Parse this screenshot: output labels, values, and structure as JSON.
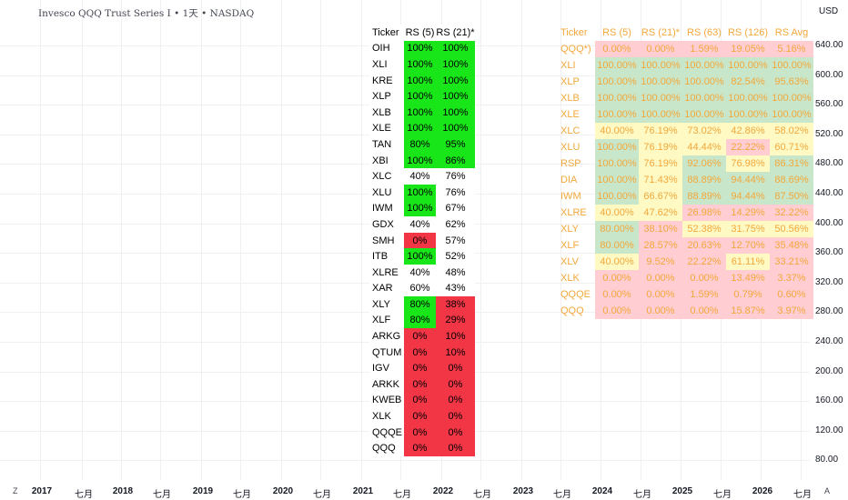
{
  "header": {
    "title": "Invesco QQQ Trust Series I • 1天 • NASDAQ",
    "currency": "USD"
  },
  "price_axis": [
    "640.00",
    "600.00",
    "560.00",
    "520.00",
    "480.00",
    "440.00",
    "400.00",
    "360.00",
    "320.00",
    "280.00",
    "240.00",
    "200.00",
    "160.00",
    "120.00",
    "80.00"
  ],
  "time_axis": [
    {
      "label": "2017",
      "year": true
    },
    {
      "label": "七月",
      "year": false
    },
    {
      "label": "2018",
      "year": true
    },
    {
      "label": "七月",
      "year": false
    },
    {
      "label": "2019",
      "year": true
    },
    {
      "label": "七月",
      "year": false
    },
    {
      "label": "2020",
      "year": true
    },
    {
      "label": "七月",
      "year": false
    },
    {
      "label": "2021",
      "year": true
    },
    {
      "label": "七月",
      "year": false
    },
    {
      "label": "2022",
      "year": true
    },
    {
      "label": "七月",
      "year": false
    },
    {
      "label": "2023",
      "year": true
    },
    {
      "label": "七月",
      "year": false
    },
    {
      "label": "2024",
      "year": true
    },
    {
      "label": "七月",
      "year": false
    },
    {
      "label": "2025",
      "year": true
    },
    {
      "label": "七月",
      "year": false
    },
    {
      "label": "2026",
      "year": true
    },
    {
      "label": "七月",
      "year": false
    }
  ],
  "corner": {
    "left": "Z",
    "right": "A"
  },
  "colors": {
    "green": "#19e619",
    "red": "#f23645",
    "soft_green": "#c8e6c9",
    "soft_yellow": "#fff9c4",
    "soft_red": "#ffcdd2",
    "orange_text": "#f3a83b"
  },
  "rs_table": {
    "headers": [
      "Ticker",
      "RS (5)",
      "RS (21)*"
    ],
    "rows": [
      {
        "t": "OIH",
        "a": "100%",
        "ac": "g",
        "b": "100%",
        "bc": "g"
      },
      {
        "t": "XLI",
        "a": "100%",
        "ac": "g",
        "b": "100%",
        "bc": "g"
      },
      {
        "t": "KRE",
        "a": "100%",
        "ac": "g",
        "b": "100%",
        "bc": "g"
      },
      {
        "t": "XLP",
        "a": "100%",
        "ac": "g",
        "b": "100%",
        "bc": "g"
      },
      {
        "t": "XLB",
        "a": "100%",
        "ac": "g",
        "b": "100%",
        "bc": "g"
      },
      {
        "t": "XLE",
        "a": "100%",
        "ac": "g",
        "b": "100%",
        "bc": "g"
      },
      {
        "t": "TAN",
        "a": "80%",
        "ac": "g",
        "b": "95%",
        "bc": "g"
      },
      {
        "t": "XBI",
        "a": "100%",
        "ac": "g",
        "b": "86%",
        "bc": "g"
      },
      {
        "t": "XLC",
        "a": "40%",
        "ac": "w",
        "b": "76%",
        "bc": "w"
      },
      {
        "t": "XLU",
        "a": "100%",
        "ac": "g",
        "b": "76%",
        "bc": "w"
      },
      {
        "t": "IWM",
        "a": "100%",
        "ac": "g",
        "b": "67%",
        "bc": "w"
      },
      {
        "t": "GDX",
        "a": "40%",
        "ac": "w",
        "b": "62%",
        "bc": "w"
      },
      {
        "t": "SMH",
        "a": "0%",
        "ac": "r",
        "b": "57%",
        "bc": "w"
      },
      {
        "t": "ITB",
        "a": "100%",
        "ac": "g",
        "b": "52%",
        "bc": "w"
      },
      {
        "t": "XLRE",
        "a": "40%",
        "ac": "w",
        "b": "48%",
        "bc": "w"
      },
      {
        "t": "XAR",
        "a": "60%",
        "ac": "w",
        "b": "43%",
        "bc": "w"
      },
      {
        "t": "XLY",
        "a": "80%",
        "ac": "g",
        "b": "38%",
        "bc": "r"
      },
      {
        "t": "XLF",
        "a": "80%",
        "ac": "g",
        "b": "29%",
        "bc": "r"
      },
      {
        "t": "ARKG",
        "a": "0%",
        "ac": "r",
        "b": "10%",
        "bc": "r"
      },
      {
        "t": "QTUM",
        "a": "0%",
        "ac": "r",
        "b": "10%",
        "bc": "r"
      },
      {
        "t": "IGV",
        "a": "0%",
        "ac": "r",
        "b": "0%",
        "bc": "r"
      },
      {
        "t": "ARKK",
        "a": "0%",
        "ac": "r",
        "b": "0%",
        "bc": "r"
      },
      {
        "t": "KWEB",
        "a": "0%",
        "ac": "r",
        "b": "0%",
        "bc": "r"
      },
      {
        "t": "XLK",
        "a": "0%",
        "ac": "r",
        "b": "0%",
        "bc": "r"
      },
      {
        "t": "QQQE",
        "a": "0%",
        "ac": "r",
        "b": "0%",
        "bc": "r"
      },
      {
        "t": "QQQ",
        "a": "0%",
        "ac": "r",
        "b": "0%",
        "bc": "r"
      }
    ]
  },
  "rs_avg_table": {
    "headers": [
      "Ticker",
      "RS (5)",
      "RS (21)*",
      "RS (63)",
      "RS (126)",
      "RS Avg"
    ],
    "rows": [
      {
        "t": "QQQ*)",
        "c": "r",
        "v": [
          "0.00%",
          "0.00%",
          "1.59%",
          "19.05%",
          "5.16%"
        ]
      },
      {
        "t": "XLI",
        "c": "g",
        "v": [
          "100.00%",
          "100.00%",
          "100.00%",
          "100.00%",
          "100.00%"
        ]
      },
      {
        "t": "XLP",
        "c": "g",
        "v": [
          "100.00%",
          "100.00%",
          "100.00%",
          "82.54%",
          "95.63%"
        ]
      },
      {
        "t": "XLB",
        "c": "g",
        "v": [
          "100.00%",
          "100.00%",
          "100.00%",
          "100.00%",
          "100.00%"
        ]
      },
      {
        "t": "XLE",
        "c": "g",
        "v": [
          "100.00%",
          "100.00%",
          "100.00%",
          "100.00%",
          "100.00%"
        ]
      },
      {
        "t": "XLC",
        "c": "y",
        "v": [
          "40.00%",
          "76.19%",
          "73.02%",
          "42.86%",
          "58.02%"
        ]
      },
      {
        "t": "XLU",
        "c": "y",
        "v": [
          "100.00%",
          "76.19%",
          "44.44%",
          "22.22%",
          "60.71%"
        ],
        "cells": [
          "g",
          "y",
          "y",
          "r",
          "y"
        ]
      },
      {
        "t": "RSP",
        "c": "g",
        "v": [
          "100.00%",
          "76.19%",
          "92.06%",
          "76.98%",
          "86.31%"
        ],
        "cells": [
          "g",
          "y",
          "g",
          "y",
          "g"
        ]
      },
      {
        "t": "DIA",
        "c": "g",
        "v": [
          "100.00%",
          "71.43%",
          "88.89%",
          "94.44%",
          "88.69%"
        ],
        "cells": [
          "g",
          "y",
          "g",
          "g",
          "g"
        ]
      },
      {
        "t": "IWM",
        "c": "g",
        "v": [
          "100.00%",
          "66.67%",
          "88.89%",
          "94.44%",
          "87.50%"
        ],
        "cells": [
          "g",
          "y",
          "g",
          "g",
          "g"
        ]
      },
      {
        "t": "XLRE",
        "c": "r",
        "v": [
          "40.00%",
          "47.62%",
          "26.98%",
          "14.29%",
          "32.22%"
        ],
        "cells": [
          "y",
          "y",
          "r",
          "r",
          "r"
        ]
      },
      {
        "t": "XLY",
        "c": "y",
        "v": [
          "80.00%",
          "38.10%",
          "52.38%",
          "31.75%",
          "50.56%"
        ],
        "cells": [
          "g",
          "r",
          "y",
          "y",
          "y"
        ]
      },
      {
        "t": "XLF",
        "c": "r",
        "v": [
          "80.00%",
          "28.57%",
          "20.63%",
          "12.70%",
          "35.48%"
        ],
        "cells": [
          "g",
          "r",
          "r",
          "r",
          "r"
        ]
      },
      {
        "t": "XLV",
        "c": "r",
        "v": [
          "40.00%",
          "9.52%",
          "22.22%",
          "61.11%",
          "33.21%"
        ],
        "cells": [
          "y",
          "r",
          "r",
          "y",
          "r"
        ]
      },
      {
        "t": "XLK",
        "c": "r",
        "v": [
          "0.00%",
          "0.00%",
          "0.00%",
          "13.49%",
          "3.37%"
        ]
      },
      {
        "t": "QQQE",
        "c": "r",
        "v": [
          "0.00%",
          "0.00%",
          "1.59%",
          "0.79%",
          "0.60%"
        ]
      },
      {
        "t": "QQQ",
        "c": "r",
        "v": [
          "0.00%",
          "0.00%",
          "0.00%",
          "15.87%",
          "3.97%"
        ]
      }
    ]
  }
}
